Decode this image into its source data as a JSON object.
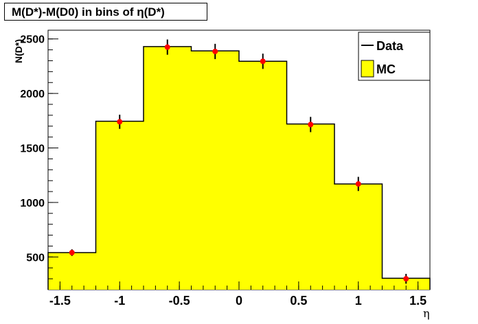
{
  "chart_data": {
    "type": "histogram",
    "title": "M(D*)-M(D0) in bins of η(D*)",
    "xlabel": "η",
    "ylabel": "N(D*)",
    "xlim": [
      -1.6,
      1.6
    ],
    "ylim": [
      200,
      2580
    ],
    "x_ticks": [
      "-1.5",
      "-1",
      "-0.5",
      "0",
      "0.5",
      "1",
      "1.5"
    ],
    "y_ticks": [
      "500",
      "1000",
      "1500",
      "2000",
      "2500"
    ],
    "bin_edges": [
      -1.6,
      -1.2,
      -0.8,
      -0.4,
      0.0,
      0.4,
      0.8,
      1.2,
      1.6
    ],
    "series": [
      {
        "name": "Data",
        "style": "points with error bars",
        "x": [
          -1.4,
          -1.0,
          -0.6,
          -0.2,
          0.2,
          0.6,
          1.0,
          1.4
        ],
        "values": [
          540,
          1740,
          2425,
          2385,
          2295,
          1715,
          1170,
          300
        ],
        "errors": [
          30,
          65,
          70,
          70,
          70,
          70,
          65,
          45
        ]
      },
      {
        "name": "MC",
        "style": "filled histogram",
        "values": [
          540,
          1745,
          2430,
          2390,
          2295,
          1720,
          1170,
          305
        ]
      }
    ],
    "legend_position": "top-right",
    "colors": {
      "mc_fill": "#ffff00",
      "data_marker": "#ff0000",
      "line": "#000000"
    }
  }
}
